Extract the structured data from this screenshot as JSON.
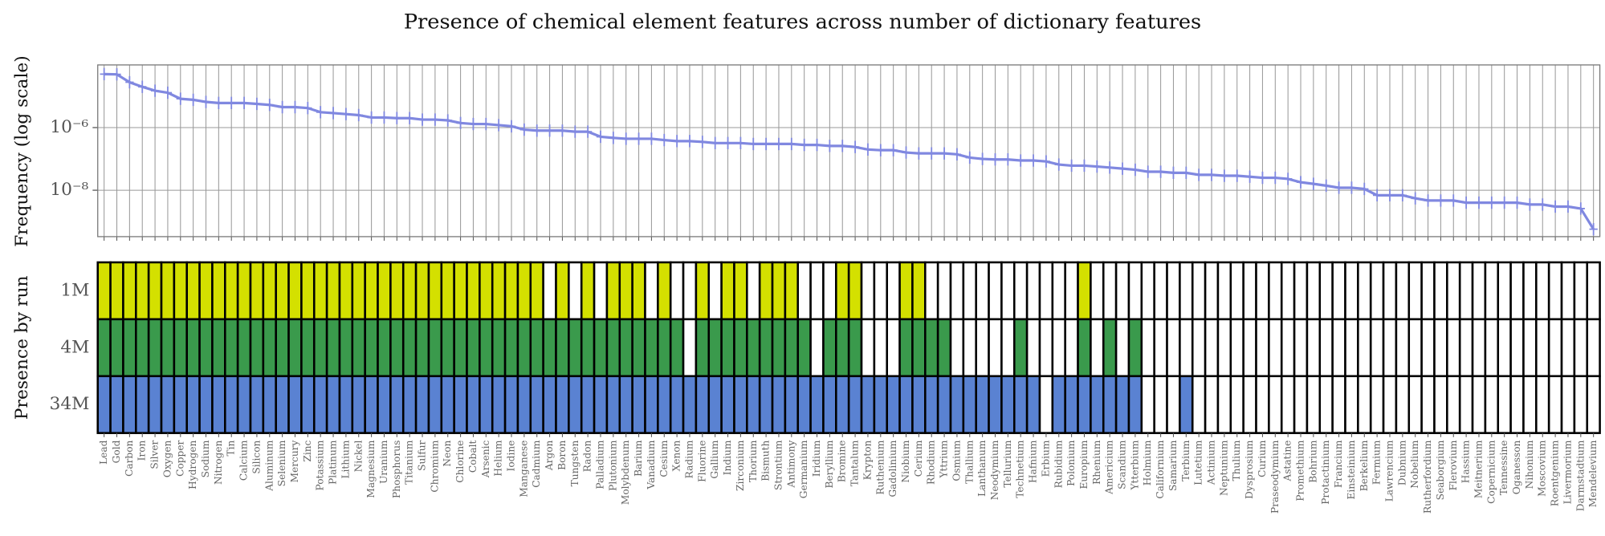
{
  "chart_data": [
    {
      "type": "line",
      "title": "Presence of chemical element features across number of dictionary features",
      "ylabel": "Frequency (log scale)",
      "log_scale": true,
      "grid": true,
      "color": "#8088e0",
      "ylim": [
        3.3e-10,
        0.0001
      ],
      "yticks": [
        {
          "value": 1e-06,
          "label": "10⁻⁶"
        },
        {
          "value": 1e-08,
          "label": "10⁻⁸"
        }
      ],
      "values": [
        5.1e-05,
        5e-05,
        2.8e-05,
        2e-05,
        1.5e-05,
        1.3e-05,
        8.3e-06,
        7.7e-06,
        6.6e-06,
        6.1e-06,
        6.1e-06,
        6.1e-06,
        5.7e-06,
        5.3e-06,
        4.5e-06,
        4.5e-06,
        4.2e-06,
        3.1e-06,
        2.9e-06,
        2.7e-06,
        2.5e-06,
        2.1e-06,
        2.1e-06,
        2e-06,
        2e-06,
        1.8e-06,
        1.8e-06,
        1.7e-06,
        1.4e-06,
        1.3e-06,
        1.3e-06,
        1.2e-06,
        1.1e-06,
        8.6e-07,
        8e-07,
        8e-07,
        8e-07,
        7.4e-07,
        7.4e-07,
        5.1e-07,
        4.7e-07,
        4.4e-07,
        4.4e-07,
        4.4e-07,
        4e-07,
        3.7e-07,
        3.7e-07,
        3.5e-07,
        3.2e-07,
        3.2e-07,
        3.2e-07,
        3e-07,
        3e-07,
        3e-07,
        3e-07,
        2.8e-07,
        2.8e-07,
        2.6e-07,
        2.6e-07,
        2.4e-07,
        2e-07,
        1.9e-07,
        1.9e-07,
        1.6e-07,
        1.5e-07,
        1.5e-07,
        1.5e-07,
        1.4e-07,
        1.1e-07,
        1e-07,
        9.6e-08,
        9.6e-08,
        8.9e-08,
        8.9e-08,
        8.3e-08,
        6.6e-08,
        6.1e-08,
        6.1e-08,
        5.7e-08,
        5.3e-08,
        4.9e-08,
        4.5e-08,
        3.9e-08,
        3.9e-08,
        3.6e-08,
        3.6e-08,
        3.1e-08,
        3.1e-08,
        2.9e-08,
        2.9e-08,
        2.7e-08,
        2.5e-08,
        2.5e-08,
        2.3e-08,
        1.8e-08,
        1.6e-08,
        1.4e-08,
        1.2e-08,
        1.2e-08,
        1.1e-08,
        6.9e-09,
        6.9e-09,
        6.9e-09,
        5.5e-09,
        4.7e-09,
        4.7e-09,
        4.7e-09,
        4e-09,
        4e-09,
        4e-09,
        4e-09,
        4e-09,
        3.5e-09,
        3.5e-09,
        3e-09,
        3e-09,
        2.6e-09,
        5.7e-10
      ]
    },
    {
      "type": "heatmap",
      "ylabel": "Presence by run",
      "categories": [
        "Lead",
        "Gold",
        "Carbon",
        "Iron",
        "Silver",
        "Oxygen",
        "Copper",
        "Hydrogen",
        "Sodium",
        "Nitrogen",
        "Tin",
        "Calcium",
        "Silicon",
        "Aluminum",
        "Selenium",
        "Mercury",
        "Zinc",
        "Potassium",
        "Platinum",
        "Lithium",
        "Nickel",
        "Magnesium",
        "Uranium",
        "Phosphorus",
        "Titanium",
        "Sulfur",
        "Chromium",
        "Neon",
        "Chlorine",
        "Cobalt",
        "Arsenic",
        "Helium",
        "Iodine",
        "Manganese",
        "Cadmium",
        "Argon",
        "Boron",
        "Tungsten",
        "Radon",
        "Palladium",
        "Plutonium",
        "Molybdenum",
        "Barium",
        "Vanadium",
        "Cesium",
        "Xenon",
        "Radium",
        "Fluorine",
        "Gallium",
        "Indium",
        "Zirconium",
        "Thorium",
        "Bismuth",
        "Strontium",
        "Antimony",
        "Germanium",
        "Iridium",
        "Beryllium",
        "Bromine",
        "Tantalum",
        "Krypton",
        "Ruthenium",
        "Gadolinium",
        "Niobium",
        "Cerium",
        "Rhodium",
        "Yttrium",
        "Osmium",
        "Thallium",
        "Lanthanum",
        "Neodymium",
        "Tellurium",
        "Technetium",
        "Hafnium",
        "Erbium",
        "Rubidium",
        "Polonium",
        "Europium",
        "Rhenium",
        "Americium",
        "Scandium",
        "Ytterbium",
        "Holmium",
        "Californium",
        "Samarium",
        "Terbium",
        "Lutetium",
        "Actinium",
        "Neptunium",
        "Thulium",
        "Dysprosium",
        "Curium",
        "Praseodymium",
        "Astatine",
        "Promethium",
        "Bohrium",
        "Protactinium",
        "Francium",
        "Einsteinium",
        "Berkelium",
        "Fermium",
        "Lawrencium",
        "Dubnium",
        "Nobelium",
        "Rutherfordium",
        "Seaborgium",
        "Flerovium",
        "Hassium",
        "Meitnerium",
        "Copernicium",
        "Tennessine",
        "Oganesson",
        "Nihonium",
        "Moscovium",
        "Roentgenium",
        "Livermorium",
        "Darmstadtium",
        "Mendelevium"
      ],
      "series": [
        {
          "name": "1M",
          "color": "#d4e000",
          "values": [
            1,
            1,
            1,
            1,
            1,
            1,
            1,
            1,
            1,
            1,
            1,
            1,
            1,
            1,
            1,
            1,
            1,
            1,
            1,
            1,
            1,
            1,
            1,
            1,
            1,
            1,
            1,
            1,
            1,
            1,
            1,
            1,
            1,
            1,
            1,
            0,
            1,
            0,
            1,
            0,
            1,
            1,
            1,
            0,
            1,
            0,
            0,
            1,
            0,
            1,
            1,
            0,
            1,
            1,
            1,
            0,
            0,
            0,
            1,
            1,
            0,
            0,
            0,
            1,
            1,
            0,
            0,
            0,
            0,
            0,
            0,
            0,
            0,
            0,
            0,
            0,
            0,
            1,
            0,
            0,
            0,
            0,
            0,
            0,
            0,
            0,
            0,
            0,
            0,
            0,
            0,
            0,
            0,
            0,
            0,
            0,
            0,
            0,
            0,
            0,
            0,
            0,
            0,
            0,
            0,
            0,
            0,
            0,
            0,
            0,
            0,
            0,
            0,
            0,
            0,
            0,
            0,
            0
          ]
        },
        {
          "name": "4M",
          "color": "#3a9a4c",
          "values": [
            1,
            1,
            1,
            1,
            1,
            1,
            1,
            1,
            1,
            1,
            1,
            1,
            1,
            1,
            1,
            1,
            1,
            1,
            1,
            1,
            1,
            1,
            1,
            1,
            1,
            1,
            1,
            1,
            1,
            1,
            1,
            1,
            1,
            1,
            1,
            1,
            1,
            1,
            1,
            1,
            1,
            1,
            1,
            1,
            1,
            1,
            0,
            1,
            1,
            1,
            1,
            1,
            1,
            1,
            1,
            1,
            0,
            1,
            1,
            1,
            0,
            0,
            0,
            1,
            1,
            1,
            1,
            0,
            0,
            0,
            0,
            0,
            1,
            0,
            0,
            0,
            0,
            1,
            0,
            1,
            0,
            1,
            0,
            0,
            0,
            0,
            0,
            0,
            0,
            0,
            0,
            0,
            0,
            0,
            0,
            0,
            0,
            0,
            0,
            0,
            0,
            0,
            0,
            0,
            0,
            0,
            0,
            0,
            0,
            0,
            0,
            0,
            0,
            0,
            0,
            0,
            0,
            0
          ]
        },
        {
          "name": "34M",
          "color": "#5a82d2",
          "values": [
            1,
            1,
            1,
            1,
            1,
            1,
            1,
            1,
            1,
            1,
            1,
            1,
            1,
            1,
            1,
            1,
            1,
            1,
            1,
            1,
            1,
            1,
            1,
            1,
            1,
            1,
            1,
            1,
            1,
            1,
            1,
            1,
            1,
            1,
            1,
            1,
            1,
            1,
            1,
            1,
            1,
            1,
            1,
            1,
            1,
            1,
            1,
            1,
            1,
            1,
            1,
            1,
            1,
            1,
            1,
            1,
            1,
            1,
            1,
            1,
            1,
            1,
            1,
            1,
            1,
            1,
            1,
            1,
            1,
            1,
            1,
            1,
            1,
            1,
            0,
            1,
            1,
            1,
            1,
            1,
            1,
            1,
            0,
            0,
            0,
            1,
            0,
            0,
            0,
            0,
            0,
            0,
            0,
            0,
            0,
            0,
            0,
            0,
            0,
            0,
            0,
            0,
            0,
            0,
            0,
            0,
            0,
            0,
            0,
            0,
            0,
            0,
            0,
            0,
            0,
            0,
            0,
            0
          ]
        }
      ]
    }
  ]
}
